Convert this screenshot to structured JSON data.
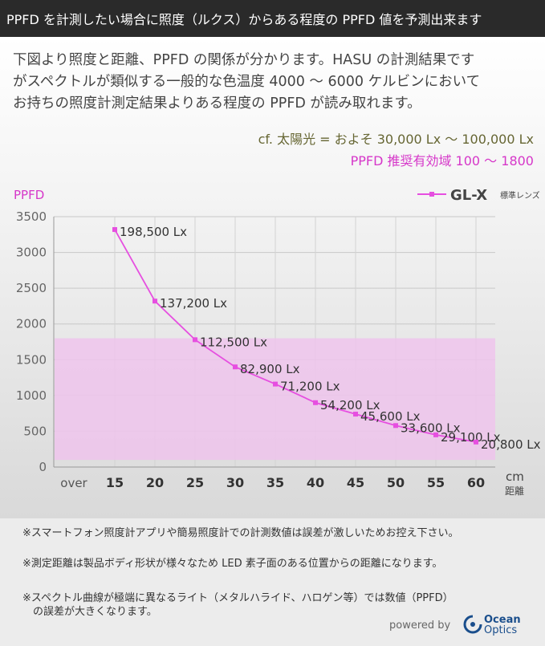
{
  "banner": {
    "text": "PPFD を計測したい場合に照度（ルクス）からある程度の PPFD 値を予測出来ます"
  },
  "intro": {
    "line1": "下図より照度と距離、PPFD の関係が分かります。HASU の計測結果です",
    "line2": "がスペクトルが類似する一般的な色温度 4000 ～ 6000 ケルビンにおいて",
    "line3": "お持ちの照度計測定結果よりある程度の PPFD が読み取れます。"
  },
  "cf_note": "cf. 太陽光 = およそ 30,000 Lx ～ 100,000 Lx",
  "ppfd_range_note": "PPFD 推奨有効域 100 ～ 1800",
  "colors": {
    "series": "#e64fe0",
    "band": "#eec4ec",
    "accent": "#d637c9"
  },
  "chart_data": {
    "type": "line",
    "ylabel": "PPFD",
    "xlabel_top": "距離",
    "xlabel_unit": "cm",
    "x_categories": [
      "over",
      "15",
      "20",
      "25",
      "30",
      "35",
      "40",
      "45",
      "50",
      "55",
      "60"
    ],
    "ylim": [
      0,
      3500
    ],
    "yticks": [
      "0",
      "500",
      "1000",
      "1500",
      "2000",
      "2500",
      "3000",
      "3500"
    ],
    "grid": true,
    "legend": {
      "name": "GL-X",
      "sub": "標準レンズ",
      "placement": "top-right"
    },
    "recommended_band": [
      100,
      1800
    ],
    "series": [
      {
        "name": "GL-X",
        "x": [
          15,
          20,
          25,
          30,
          35,
          40,
          45,
          50,
          55,
          60
        ],
        "y": [
          3320,
          2320,
          1780,
          1400,
          1160,
          900,
          740,
          580,
          450,
          350
        ],
        "labels": [
          "198,500 Lx",
          "137,200 Lx",
          "112,500 Lx",
          "82,900 Lx",
          "71,200 Lx",
          "54,200 Lx",
          "45,600 Lx",
          "33,600 Lx",
          "29,100 Lx",
          "20,800 Lx"
        ]
      }
    ]
  },
  "notes": {
    "n1": "※スマートフォン照度計アプリや簡易照度計での計測数値は誤差が激しいためお控え下さい。",
    "n2": "※測定距離は製品ボディ形状が様々なため LED 素子面のある位置からの距離になります。",
    "n3a": "※スペクトル曲線が極端に異なるライト（メタルハライド、ハロゲン等）では数値（PPFD）",
    "n3b": "　の誤差が大きくなります。"
  },
  "powered": {
    "label": "powered by",
    "brand_top": "Ocean",
    "brand_bottom": "Optics"
  }
}
